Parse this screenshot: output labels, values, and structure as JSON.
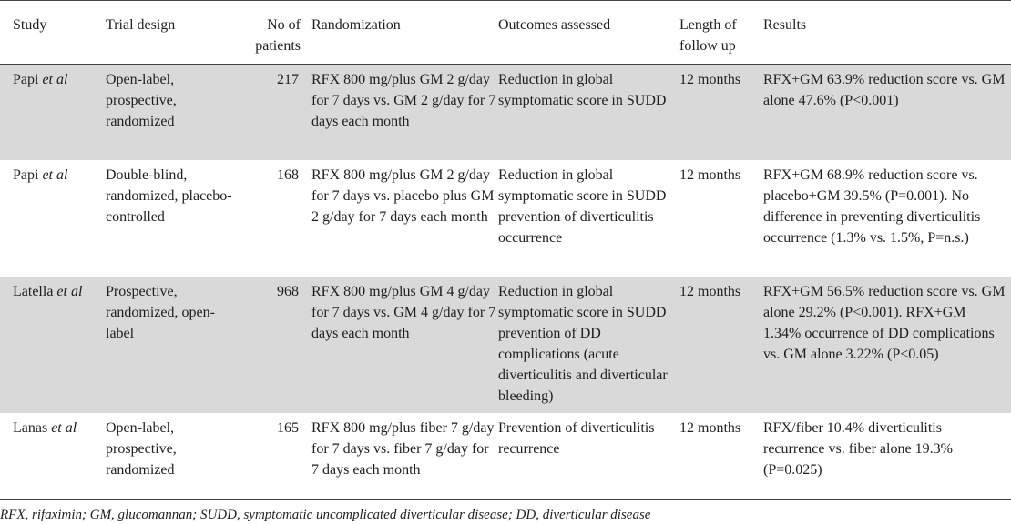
{
  "headers": {
    "study": "Study",
    "trial_design": "Trial design",
    "no_of_patients": "No of patients",
    "randomization": "Randomization",
    "outcomes": "Outcomes assessed",
    "followup": "Length of follow up",
    "results": "Results"
  },
  "rows": [
    {
      "study_name": "Papi ",
      "study_suffix": "et al",
      "trial_design": "Open-label, prospective, randomized",
      "patients": "217",
      "randomization": "RFX 800 mg/plus GM 2 g/day for 7 days vs. GM 2 g/day for 7 days each month",
      "outcomes": "Reduction in global symptomatic score in SUDD",
      "followup": "12 months",
      "results": "RFX+GM 63.9% reduction score vs. GM alone 47.6% (P<0.001)"
    },
    {
      "study_name": "Papi ",
      "study_suffix": "et al",
      "trial_design": "Double-blind, randomized, placebo-controlled",
      "patients": "168",
      "randomization": "RFX 800 mg/plus GM 2 g/day for 7 days vs. placebo plus GM 2 g/day for 7 days each month",
      "outcomes": "Reduction in global symptomatic score in SUDD prevention of diverticulitis occurrence",
      "followup": "12 months",
      "results": "RFX+GM 68.9% reduction score vs. placebo+GM 39.5% (P=0.001). No difference in preventing diverticulitis occurrence (1.3% vs. 1.5%, P=n.s.)"
    },
    {
      "study_name": "Latella ",
      "study_suffix": "et al",
      "trial_design": "Prospective, randomized, open-label",
      "patients": "968",
      "randomization": "RFX 800 mg/plus GM 4 g/day for 7 days vs. GM 4 g/day for 7 days each month",
      "outcomes": "Reduction in global symptomatic score in SUDD prevention of DD complications (acute diverticulitis and diverticular bleeding)",
      "followup": "12 months",
      "results": "RFX+GM 56.5% reduction score vs. GM alone 29.2% (P<0.001). RFX+GM 1.34% occurrence of DD complications vs. GM alone 3.22% (P<0.05)"
    },
    {
      "study_name": "Lanas ",
      "study_suffix": "et al",
      "trial_design": "Open-label, prospective, randomized",
      "patients": "165",
      "randomization": "RFX 800 mg/plus fiber 7 g/day for 7 days vs. fiber 7 g/day for 7 days each month",
      "outcomes": "Prevention of diverticulitis recurrence",
      "followup": "12 months",
      "results": "RFX/fiber 10.4% diverticulitis recurrence vs. fiber alone 19.3% (P=0.025)"
    }
  ],
  "footnote": "RFX, rifaximin; GM, glucomannan; SUDD, symptomatic uncomplicated diverticular disease; DD, diverticular disease"
}
